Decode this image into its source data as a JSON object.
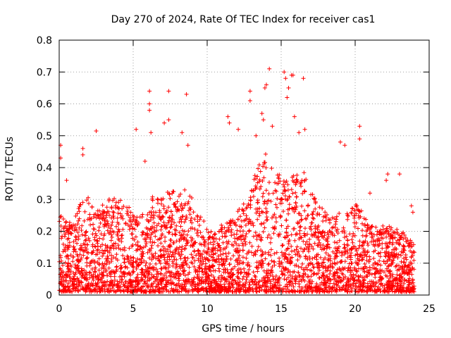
{
  "chart_data": {
    "type": "scatter",
    "title": "Day 270 of 2024, Rate Of TEC Index for receiver cas1",
    "xlabel": "GPS time / hours",
    "ylabel": "ROTI / TECUs",
    "xlim": [
      0,
      25
    ],
    "ylim": [
      0,
      0.8
    ],
    "xticks": [
      0,
      5,
      10,
      15,
      20,
      25
    ],
    "xtick_labels": [
      "0",
      "5",
      "10",
      "15",
      "20",
      "25"
    ],
    "yticks": [
      0,
      0.1,
      0.2,
      0.3,
      0.4,
      0.5,
      0.6,
      0.7,
      0.8
    ],
    "ytick_labels": [
      "0",
      "0.1",
      "0.2",
      "0.3",
      "0.4",
      "0.5",
      "0.6",
      "0.7",
      "0.8"
    ],
    "grid": true,
    "marker": "plus",
    "color": "#ff0000",
    "series": [
      {
        "name": "ROTI",
        "envelope": {
          "hours": [
            0.0,
            0.5,
            1.0,
            1.5,
            2.0,
            2.5,
            3.0,
            3.5,
            4.0,
            4.5,
            5.0,
            5.5,
            6.0,
            6.5,
            7.0,
            7.5,
            8.0,
            8.5,
            9.0,
            9.5,
            10.0,
            10.5,
            11.0,
            11.5,
            12.0,
            12.5,
            13.0,
            13.5,
            14.0,
            14.5,
            15.0,
            15.5,
            16.0,
            16.5,
            17.0,
            17.5,
            18.0,
            18.5,
            19.0,
            19.5,
            20.0,
            20.5,
            21.0,
            21.5,
            22.0,
            22.5,
            23.0,
            23.5,
            24.0
          ],
          "typical_max": [
            0.25,
            0.22,
            0.22,
            0.3,
            0.3,
            0.25,
            0.28,
            0.3,
            0.3,
            0.28,
            0.25,
            0.25,
            0.3,
            0.3,
            0.3,
            0.32,
            0.32,
            0.33,
            0.3,
            0.25,
            0.2,
            0.2,
            0.22,
            0.22,
            0.25,
            0.28,
            0.35,
            0.4,
            0.45,
            0.42,
            0.35,
            0.35,
            0.4,
            0.38,
            0.32,
            0.28,
            0.25,
            0.25,
            0.25,
            0.25,
            0.28,
            0.25,
            0.22,
            0.2,
            0.22,
            0.2,
            0.2,
            0.18,
            0.15
          ]
        },
        "outliers": [
          {
            "x": 0.1,
            "y": 0.47
          },
          {
            "x": 0.1,
            "y": 0.43
          },
          {
            "x": 0.5,
            "y": 0.36
          },
          {
            "x": 1.6,
            "y": 0.46
          },
          {
            "x": 1.6,
            "y": 0.44
          },
          {
            "x": 2.5,
            "y": 0.515
          },
          {
            "x": 5.2,
            "y": 0.52
          },
          {
            "x": 5.8,
            "y": 0.42
          },
          {
            "x": 6.1,
            "y": 0.64
          },
          {
            "x": 6.1,
            "y": 0.6
          },
          {
            "x": 6.1,
            "y": 0.58
          },
          {
            "x": 6.2,
            "y": 0.51
          },
          {
            "x": 7.1,
            "y": 0.54
          },
          {
            "x": 7.4,
            "y": 0.64
          },
          {
            "x": 7.4,
            "y": 0.55
          },
          {
            "x": 8.3,
            "y": 0.51
          },
          {
            "x": 8.6,
            "y": 0.63
          },
          {
            "x": 8.7,
            "y": 0.47
          },
          {
            "x": 11.4,
            "y": 0.56
          },
          {
            "x": 11.5,
            "y": 0.54
          },
          {
            "x": 12.1,
            "y": 0.52
          },
          {
            "x": 12.9,
            "y": 0.64
          },
          {
            "x": 12.9,
            "y": 0.61
          },
          {
            "x": 13.3,
            "y": 0.5
          },
          {
            "x": 13.7,
            "y": 0.57
          },
          {
            "x": 13.8,
            "y": 0.55
          },
          {
            "x": 13.9,
            "y": 0.65
          },
          {
            "x": 14.0,
            "y": 0.66
          },
          {
            "x": 14.2,
            "y": 0.71
          },
          {
            "x": 14.4,
            "y": 0.53
          },
          {
            "x": 15.2,
            "y": 0.7
          },
          {
            "x": 15.3,
            "y": 0.68
          },
          {
            "x": 15.4,
            "y": 0.62
          },
          {
            "x": 15.5,
            "y": 0.65
          },
          {
            "x": 15.7,
            "y": 0.69
          },
          {
            "x": 15.8,
            "y": 0.69
          },
          {
            "x": 15.9,
            "y": 0.56
          },
          {
            "x": 16.2,
            "y": 0.51
          },
          {
            "x": 16.5,
            "y": 0.68
          },
          {
            "x": 16.6,
            "y": 0.52
          },
          {
            "x": 19.0,
            "y": 0.48
          },
          {
            "x": 19.3,
            "y": 0.47
          },
          {
            "x": 20.3,
            "y": 0.53
          },
          {
            "x": 20.3,
            "y": 0.49
          },
          {
            "x": 21.0,
            "y": 0.32
          },
          {
            "x": 22.2,
            "y": 0.38
          },
          {
            "x": 22.1,
            "y": 0.36
          },
          {
            "x": 23.0,
            "y": 0.38
          },
          {
            "x": 23.8,
            "y": 0.28
          },
          {
            "x": 23.9,
            "y": 0.26
          }
        ]
      }
    ]
  }
}
